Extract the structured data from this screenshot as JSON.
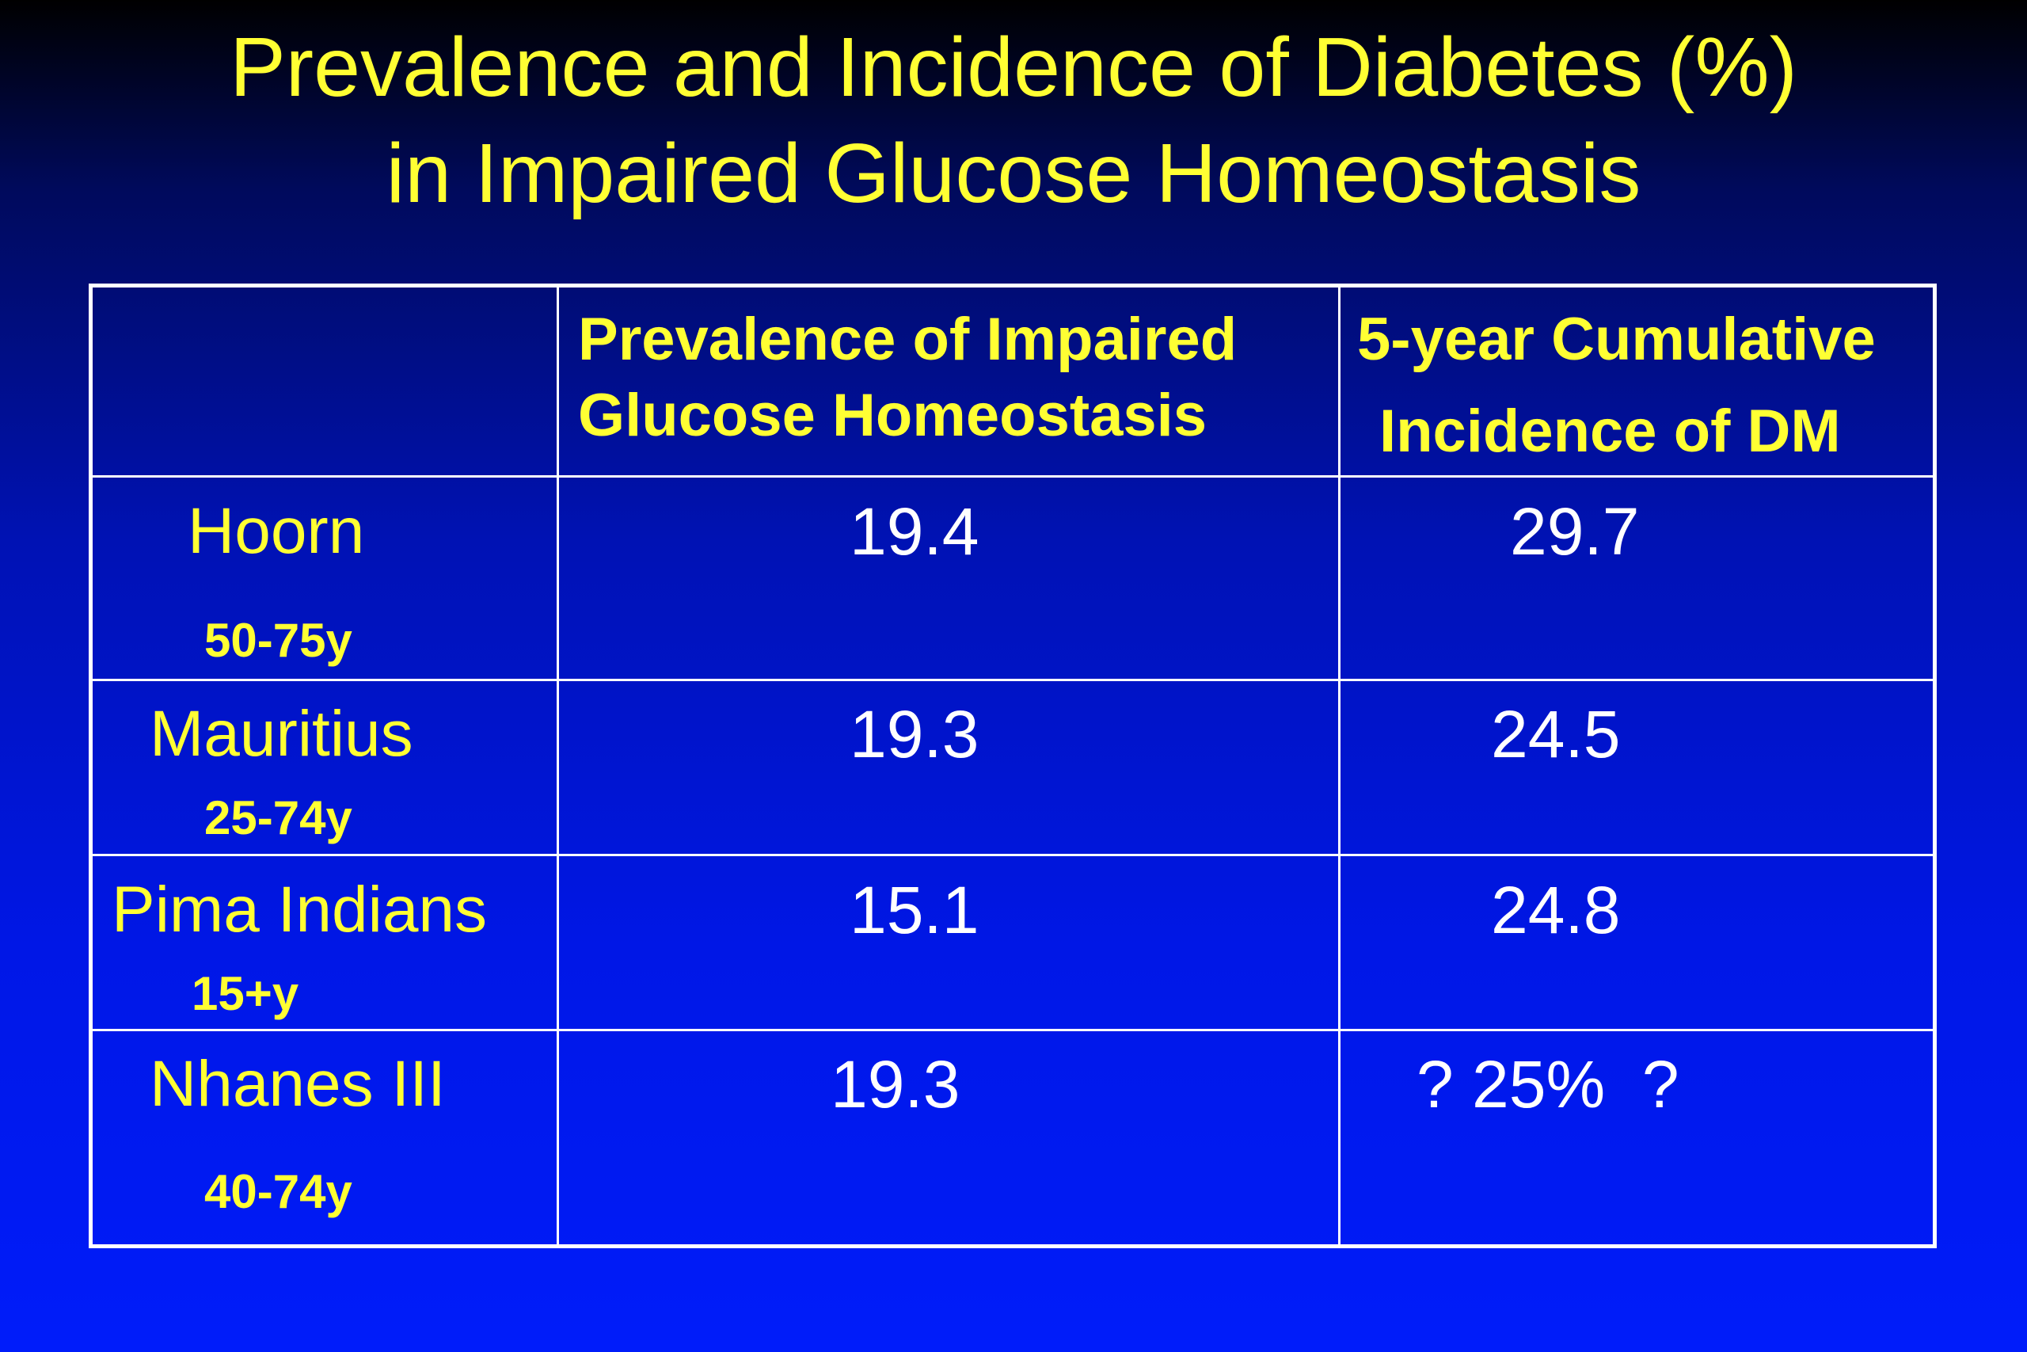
{
  "title": {
    "line1": "Prevalence and Incidence of Diabetes (%)",
    "line2": "in Impaired Glucose Homeostasis"
  },
  "table": {
    "headers": {
      "col2_line1": "Prevalence of Impaired",
      "col2_line2": "Glucose Homeostasis",
      "col3_line1": "5-year Cumulative",
      "col3_line2": "Incidence of DM"
    },
    "rows": [
      {
        "site": "Hoorn",
        "age": "50-75y",
        "prevalence": "19.4",
        "incidence": "29.7"
      },
      {
        "site": "Mauritius",
        "age": "25-74y",
        "prevalence": "19.3",
        "incidence": "24.5"
      },
      {
        "site": "Pima Indians",
        "age": "15+y",
        "prevalence": "15.1",
        "incidence": "24.8"
      },
      {
        "site": "Nhanes III",
        "age": "40-74y",
        "prevalence": "19.3",
        "incidence": "? 25%  ?"
      }
    ]
  },
  "colors": {
    "title_text": "#ffff33",
    "value_text": "#ffffff",
    "background_top": "#000000",
    "background_bottom": "#001cfa",
    "grid_lines": "#ffffff"
  }
}
